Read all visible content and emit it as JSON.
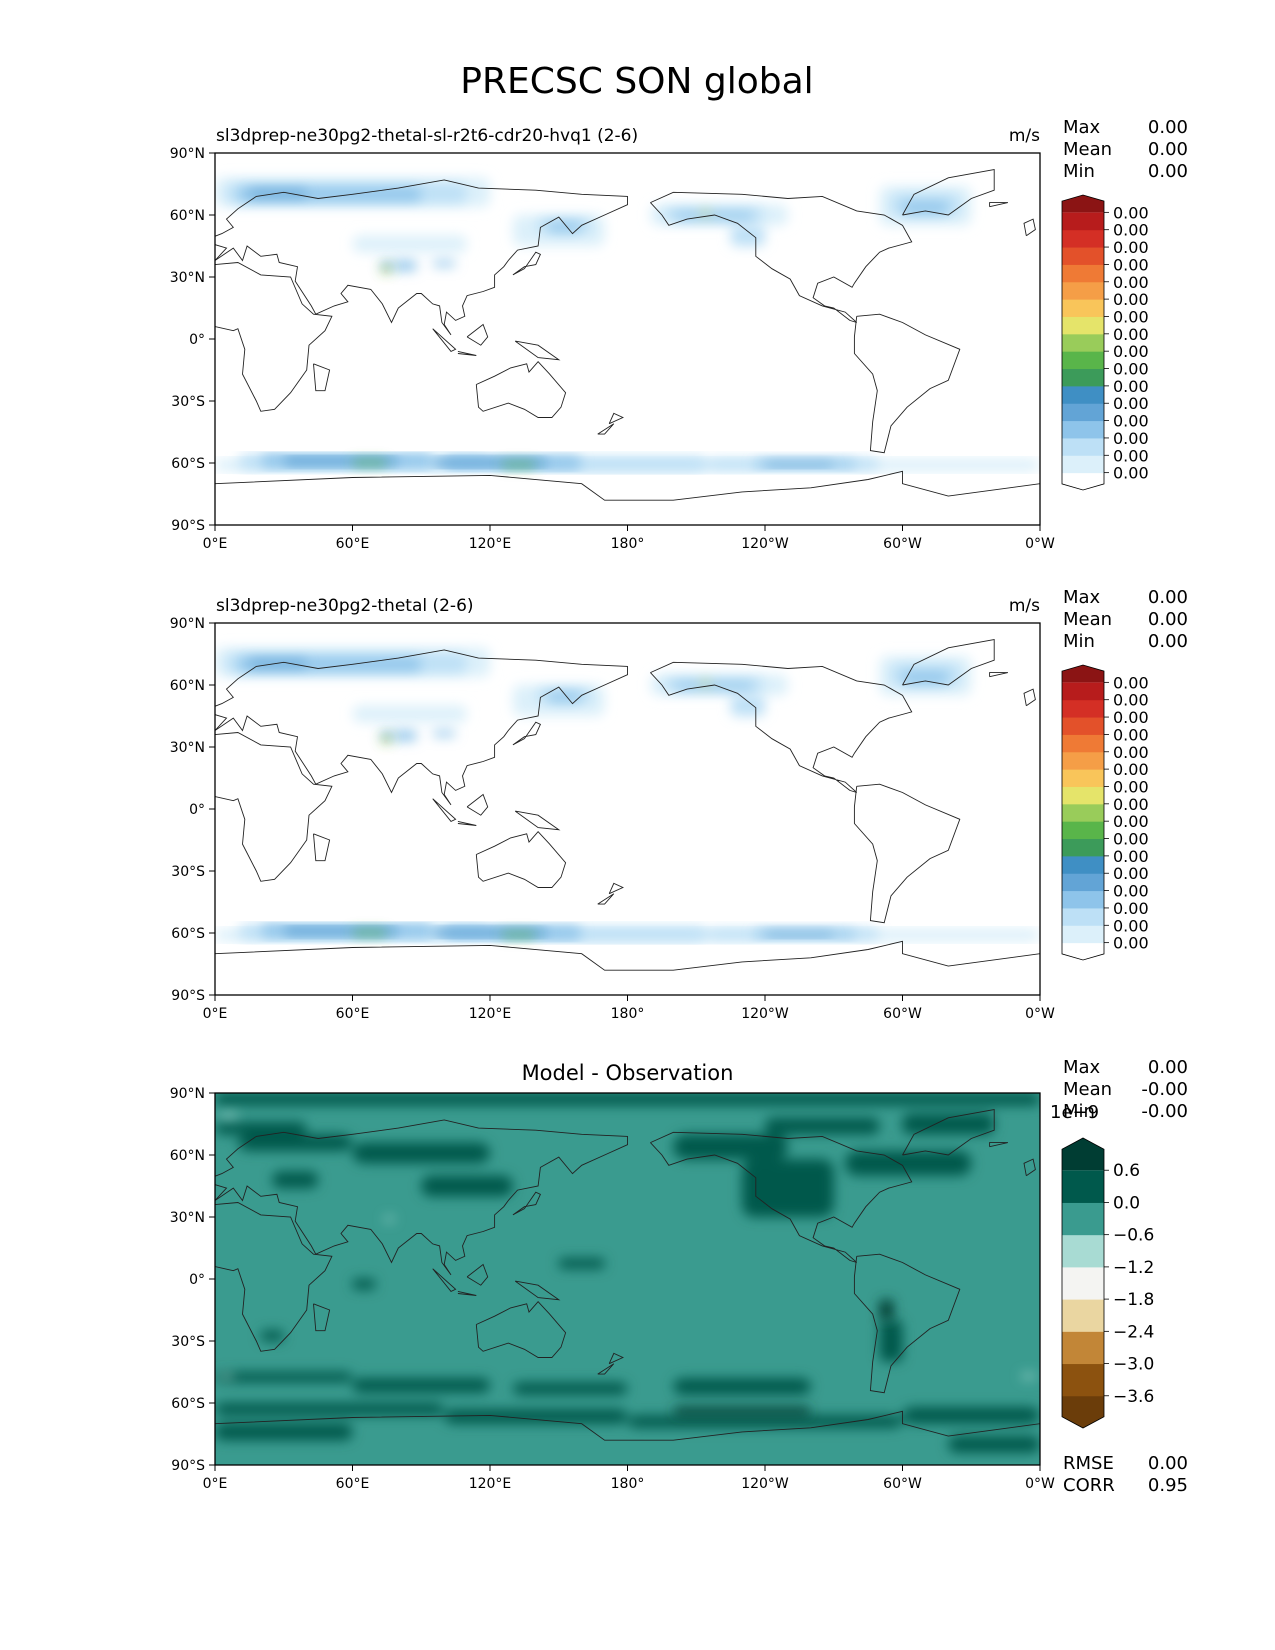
{
  "figure": {
    "title": "PRECSC SON global"
  },
  "panels": [
    {
      "id": "test",
      "left_title": "sl3dprep-ne30pg2-thetal-sl-r2t6-cdr20-hvq1 (2-6)",
      "center_title": "",
      "units": "m/s",
      "stats": [
        {
          "label": "Max",
          "value": "0.00"
        },
        {
          "label": "Mean",
          "value": "0.00"
        },
        {
          "label": "Min",
          "value": "0.00"
        }
      ],
      "colorbar": {
        "exponent": "",
        "colors": [
          "#ffffff",
          "#dcf0fa",
          "#bde0f6",
          "#8ec4ea",
          "#62a4d6",
          "#3f8fc4",
          "#3c9b5a",
          "#59b54a",
          "#99cc5a",
          "#e5e46a",
          "#f9c55a",
          "#f59e47",
          "#ef7a35",
          "#e3512a",
          "#d42f25",
          "#b71c1c",
          "#8b1414"
        ],
        "tick_labels": [
          "0.00",
          "0.00",
          "0.00",
          "0.00",
          "0.00",
          "0.00",
          "0.00",
          "0.00",
          "0.00",
          "0.00",
          "0.00",
          "0.00",
          "0.00",
          "0.00",
          "0.00",
          "0.00"
        ]
      },
      "footer_stats": []
    },
    {
      "id": "reference",
      "left_title": "sl3dprep-ne30pg2-thetal (2-6)",
      "center_title": "",
      "units": "m/s",
      "stats": [
        {
          "label": "Max",
          "value": "0.00"
        },
        {
          "label": "Mean",
          "value": "0.00"
        },
        {
          "label": "Min",
          "value": "0.00"
        }
      ],
      "colorbar": {
        "exponent": "",
        "colors": [
          "#ffffff",
          "#dcf0fa",
          "#bde0f6",
          "#8ec4ea",
          "#62a4d6",
          "#3f8fc4",
          "#3c9b5a",
          "#59b54a",
          "#99cc5a",
          "#e5e46a",
          "#f9c55a",
          "#f59e47",
          "#ef7a35",
          "#e3512a",
          "#d42f25",
          "#b71c1c",
          "#8b1414"
        ],
        "tick_labels": [
          "0.00",
          "0.00",
          "0.00",
          "0.00",
          "0.00",
          "0.00",
          "0.00",
          "0.00",
          "0.00",
          "0.00",
          "0.00",
          "0.00",
          "0.00",
          "0.00",
          "0.00",
          "0.00"
        ]
      },
      "footer_stats": []
    },
    {
      "id": "difference",
      "left_title": "",
      "center_title": "Model - Observation",
      "units": "",
      "stats": [
        {
          "label": "Max",
          "value": "0.00"
        },
        {
          "label": "Mean",
          "value": "-0.00"
        },
        {
          "label": "Min",
          "value": "-0.00"
        }
      ],
      "colorbar": {
        "exponent": "1e−9",
        "colors": [
          "#6b3d0a",
          "#8c520f",
          "#c28637",
          "#ead6a1",
          "#f4f4f2",
          "#a8dbd3",
          "#3a9b8f",
          "#00594c",
          "#003d33"
        ],
        "tick_labels": [
          "−3.6",
          "−3.0",
          "−2.4",
          "−1.8",
          "−1.2",
          "−0.6",
          "0.0",
          "0.6"
        ]
      },
      "footer_stats": [
        {
          "label": "RMSE",
          "value": "0.00"
        },
        {
          "label": "CORR",
          "value": "0.95"
        }
      ]
    }
  ],
  "axes": {
    "x_tick_labels": [
      "0°E",
      "60°E",
      "120°E",
      "180°",
      "120°W",
      "60°W",
      "0°W"
    ],
    "y_tick_labels": [
      "90°N",
      "60°N",
      "30°N",
      "0°",
      "30°S",
      "60°S",
      "90°S"
    ]
  },
  "chart_data": [
    {
      "type": "heatmap",
      "title": "sl3dprep-ne30pg2-thetal-sl-r2t6-cdr20-hvq1 (2-6)",
      "variable": "PRECSC",
      "season": "SON",
      "units": "m/s",
      "lon_ticks": [
        0,
        60,
        120,
        180,
        240,
        300,
        360
      ],
      "lat_ticks": [
        90,
        60,
        30,
        0,
        -30,
        -60,
        -90
      ],
      "xlim": [
        0,
        360
      ],
      "ylim": [
        -90,
        90
      ],
      "colormap": "white-blue-green-yellow-red",
      "stats": {
        "Max": 0.0,
        "Mean": 0.0,
        "Min": 0.0
      }
    },
    {
      "type": "heatmap",
      "title": "sl3dprep-ne30pg2-thetal (2-6)",
      "variable": "PRECSC",
      "season": "SON",
      "units": "m/s",
      "lon_ticks": [
        0,
        60,
        120,
        180,
        240,
        300,
        360
      ],
      "lat_ticks": [
        90,
        60,
        30,
        0,
        -30,
        -60,
        -90
      ],
      "xlim": [
        0,
        360
      ],
      "ylim": [
        -90,
        90
      ],
      "colormap": "white-blue-green-yellow-red",
      "stats": {
        "Max": 0.0,
        "Mean": 0.0,
        "Min": 0.0
      }
    },
    {
      "type": "heatmap",
      "title": "Model - Observation",
      "variable": "PRECSC",
      "season": "SON",
      "units": "",
      "scale_exponent": -9,
      "levels": [
        -3.6,
        -3.0,
        -2.4,
        -1.8,
        -1.2,
        -0.6,
        0.0,
        0.6
      ],
      "lon_ticks": [
        0,
        60,
        120,
        180,
        240,
        300,
        360
      ],
      "lat_ticks": [
        90,
        60,
        30,
        0,
        -30,
        -60,
        -90
      ],
      "xlim": [
        0,
        360
      ],
      "ylim": [
        -90,
        90
      ],
      "colormap": "brown-white-teal",
      "stats": {
        "Max": 0.0,
        "Mean": -0.0,
        "Min": -0.0,
        "RMSE": 0.0,
        "CORR": 0.95
      }
    }
  ]
}
